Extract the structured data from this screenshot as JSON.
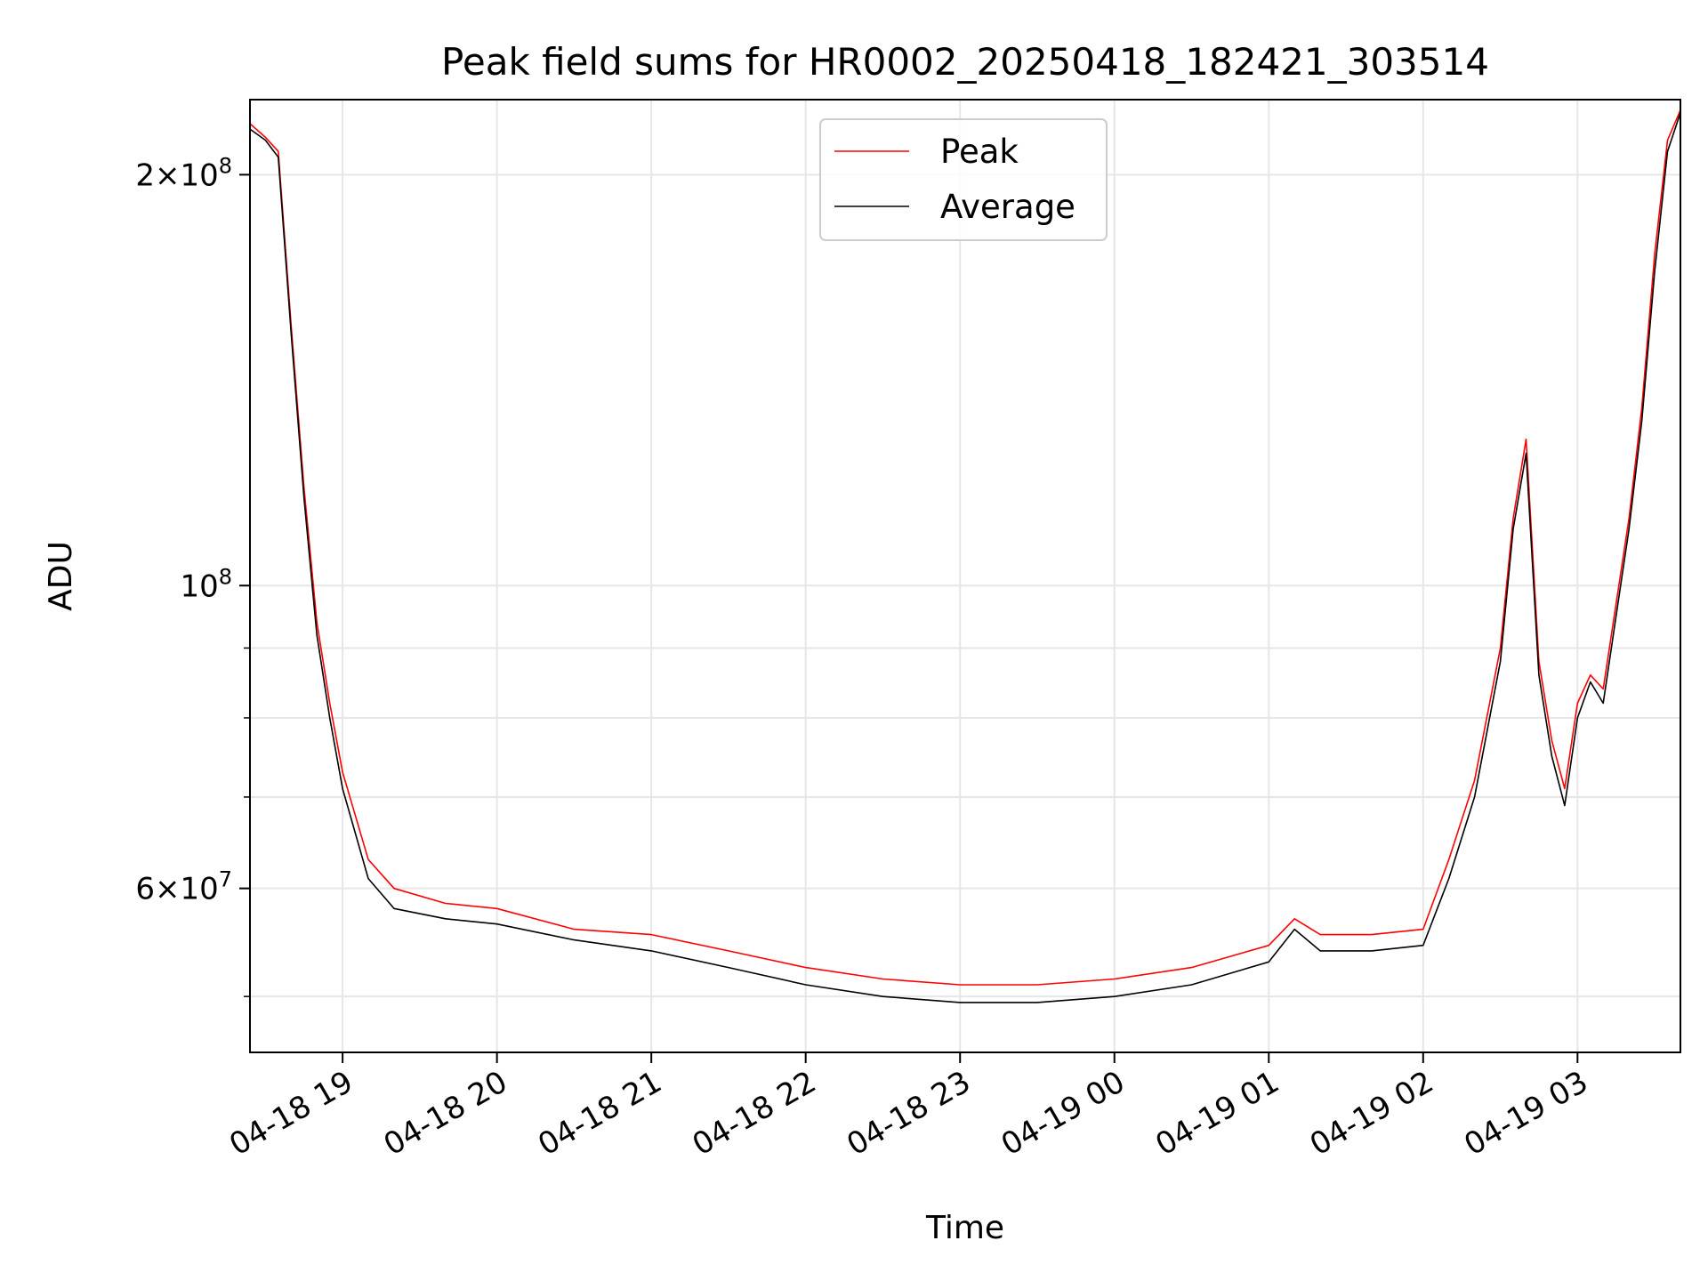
{
  "chart_data": {
    "type": "line",
    "title": "Peak field sums for HR0002_20250418_182421_303514",
    "xlabel": "Time",
    "ylabel": "ADU",
    "yscale": "log",
    "xlim": [
      "2025-04-18 18:24",
      "2025-04-19 03:40"
    ],
    "ylim": [
      45500000,
      227000000
    ],
    "grid": true,
    "legend_position": "top-center",
    "x_ticks": [
      "04-18 19",
      "04-18 20",
      "04-18 21",
      "04-18 22",
      "04-18 23",
      "04-19 00",
      "04-19 01",
      "04-19 02",
      "04-19 03"
    ],
    "x_tick_times": [
      "2025-04-18 19:00",
      "2025-04-18 20:00",
      "2025-04-18 21:00",
      "2025-04-18 22:00",
      "2025-04-18 23:00",
      "2025-04-19 00:00",
      "2025-04-19 01:00",
      "2025-04-19 02:00",
      "2025-04-19 03:00"
    ],
    "y_major_ticks": [
      {
        "value": 60000000,
        "mantissa": "6",
        "exponent": "7"
      },
      {
        "value": 100000000,
        "mantissa": "",
        "exponent": "8"
      },
      {
        "value": 200000000,
        "mantissa": "2",
        "exponent": "8"
      }
    ],
    "y_minor_grid": [
      50000000,
      70000000,
      80000000,
      90000000
    ],
    "series": [
      {
        "name": "Peak",
        "color": "#ff0000",
        "x": [
          "2025-04-18 18:24",
          "2025-04-18 18:30",
          "2025-04-18 18:35",
          "2025-04-18 18:40",
          "2025-04-18 18:45",
          "2025-04-18 18:50",
          "2025-04-18 18:55",
          "2025-04-18 19:00",
          "2025-04-18 19:10",
          "2025-04-18 19:20",
          "2025-04-18 19:40",
          "2025-04-18 20:00",
          "2025-04-18 20:30",
          "2025-04-18 21:00",
          "2025-04-18 21:30",
          "2025-04-18 22:00",
          "2025-04-18 22:30",
          "2025-04-18 23:00",
          "2025-04-18 23:30",
          "2025-04-19 00:00",
          "2025-04-19 00:30",
          "2025-04-19 01:00",
          "2025-04-19 01:10",
          "2025-04-19 01:20",
          "2025-04-19 01:40",
          "2025-04-19 02:00",
          "2025-04-19 02:10",
          "2025-04-19 02:20",
          "2025-04-19 02:30",
          "2025-04-19 02:35",
          "2025-04-19 02:40",
          "2025-04-19 02:45",
          "2025-04-19 02:50",
          "2025-04-19 02:55",
          "2025-04-19 03:00",
          "2025-04-19 03:05",
          "2025-04-19 03:10",
          "2025-04-19 03:15",
          "2025-04-19 03:20",
          "2025-04-19 03:25",
          "2025-04-19 03:30",
          "2025-04-19 03:35",
          "2025-04-19 03:40"
        ],
        "values": [
          218000000,
          213000000,
          208000000,
          155000000,
          118000000,
          94000000,
          82000000,
          73000000,
          63000000,
          60000000,
          58500000,
          58000000,
          56000000,
          55500000,
          54000000,
          52500000,
          51500000,
          51000000,
          51000000,
          51500000,
          52500000,
          54500000,
          57000000,
          55500000,
          55500000,
          56000000,
          63000000,
          72000000,
          90000000,
          112000000,
          128000000,
          88000000,
          77000000,
          71000000,
          82000000,
          86000000,
          84000000,
          97000000,
          112000000,
          135000000,
          175000000,
          212000000,
          223000000
        ]
      },
      {
        "name": "Average",
        "color": "#000000",
        "x": [
          "2025-04-18 18:24",
          "2025-04-18 18:30",
          "2025-04-18 18:35",
          "2025-04-18 18:40",
          "2025-04-18 18:45",
          "2025-04-18 18:50",
          "2025-04-18 18:55",
          "2025-04-18 19:00",
          "2025-04-18 19:10",
          "2025-04-18 19:20",
          "2025-04-18 19:40",
          "2025-04-18 20:00",
          "2025-04-18 20:30",
          "2025-04-18 21:00",
          "2025-04-18 21:30",
          "2025-04-18 22:00",
          "2025-04-18 22:30",
          "2025-04-18 23:00",
          "2025-04-18 23:30",
          "2025-04-19 00:00",
          "2025-04-19 00:30",
          "2025-04-19 01:00",
          "2025-04-19 01:10",
          "2025-04-19 01:20",
          "2025-04-19 01:40",
          "2025-04-19 02:00",
          "2025-04-19 02:10",
          "2025-04-19 02:20",
          "2025-04-19 02:30",
          "2025-04-19 02:35",
          "2025-04-19 02:40",
          "2025-04-19 02:45",
          "2025-04-19 02:50",
          "2025-04-19 02:55",
          "2025-04-19 03:00",
          "2025-04-19 03:05",
          "2025-04-19 03:10",
          "2025-04-19 03:15",
          "2025-04-19 03:20",
          "2025-04-19 03:25",
          "2025-04-19 03:30",
          "2025-04-19 03:35",
          "2025-04-19 03:40"
        ],
        "values": [
          216000000,
          212000000,
          206000000,
          153000000,
          116000000,
          92000000,
          80000000,
          71000000,
          61000000,
          58000000,
          57000000,
          56500000,
          55000000,
          54000000,
          52500000,
          51000000,
          50000000,
          49500000,
          49500000,
          50000000,
          51000000,
          53000000,
          56000000,
          54000000,
          54000000,
          54500000,
          61000000,
          70000000,
          88000000,
          110000000,
          125000000,
          86000000,
          75000000,
          69000000,
          80000000,
          85000000,
          82000000,
          95000000,
          110000000,
          132000000,
          170000000,
          208000000,
          222000000
        ]
      }
    ]
  }
}
